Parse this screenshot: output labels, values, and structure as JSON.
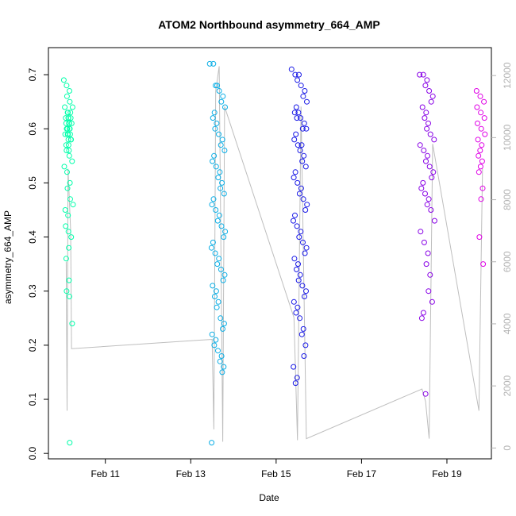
{
  "chart_data": {
    "type": "scatter",
    "title": "ATOM2 Northbound asymmetry_664_AMP",
    "xlabel": "Date",
    "ylabel": "asymmetry_664_AMP",
    "xlim": [
      "2024-02-09T16:00",
      "2024-02-20T01:00"
    ],
    "ylim": [
      -0.01,
      0.75
    ],
    "x_ticks": [
      {
        "value": "2024-02-11T00:00",
        "label": "Feb 11"
      },
      {
        "value": "2024-02-13T00:00",
        "label": "Feb 13"
      },
      {
        "value": "2024-02-15T00:00",
        "label": "Feb 15"
      },
      {
        "value": "2024-02-17T00:00",
        "label": "Feb 17"
      },
      {
        "value": "2024-02-19T00:00",
        "label": "Feb 19"
      }
    ],
    "y_ticks": [
      0.0,
      0.1,
      0.2,
      0.3,
      0.4,
      0.5,
      0.6,
      0.7
    ],
    "y_tick_labels": [
      "0.0",
      "0.1",
      "0.2",
      "0.3",
      "0.4",
      "0.5",
      "0.6",
      "0.7"
    ],
    "y2_ticks": [
      0,
      2000,
      4000,
      6000,
      8000,
      10000,
      12000
    ],
    "y2_tick_labels": [
      "0",
      "2000",
      "4000",
      "6000",
      "8000",
      "10000",
      "12000"
    ],
    "y2lim": [
      -350,
      12900
    ],
    "grid": false,
    "colors": {
      "cluster1": "#00ffaa",
      "cluster2": "#0aaee6",
      "cluster3": "#1a1ae6",
      "cluster4": "#8800e6",
      "cluster5": "#e000e6",
      "line": "#bebebe",
      "right_axis": "#b3b3b3"
    },
    "series": [
      {
        "color": "#00ffaa",
        "x": [
          "2024-02-10T02:00",
          "2024-02-10T02:30",
          "2024-02-10T03:00",
          "2024-02-10T03:30",
          "2024-02-10T04:00",
          "2024-02-10T04:30"
        ],
        "centers": [
          0.6,
          0.61,
          0.59,
          0.6,
          0.58,
          0.59
        ],
        "points": [
          0.69,
          0.68,
          0.67,
          0.66,
          0.65,
          0.64,
          0.64,
          0.63,
          0.63,
          0.63,
          0.62,
          0.62,
          0.62,
          0.62,
          0.61,
          0.61,
          0.61,
          0.61,
          0.6,
          0.6,
          0.6,
          0.6,
          0.6,
          0.59,
          0.59,
          0.59,
          0.59,
          0.58,
          0.58,
          0.58,
          0.57,
          0.57,
          0.56,
          0.56,
          0.55,
          0.54,
          0.53,
          0.52,
          0.5,
          0.49,
          0.47,
          0.46,
          0.45,
          0.44,
          0.42,
          0.41,
          0.4,
          0.38,
          0.36,
          0.32,
          0.3,
          0.29,
          0.24,
          0.02
        ]
      },
      {
        "color": "#0aaee6",
        "x": [
          "2024-02-13T12:00",
          "2024-02-13T13:00",
          "2024-02-13T14:00",
          "2024-02-13T15:00",
          "2024-02-13T16:00",
          "2024-02-13T17:00",
          "2024-02-13T18:00",
          "2024-02-13T19:00"
        ],
        "points": [
          0.72,
          0.72,
          0.68,
          0.68,
          0.67,
          0.66,
          0.65,
          0.64,
          0.63,
          0.62,
          0.61,
          0.6,
          0.59,
          0.58,
          0.57,
          0.56,
          0.55,
          0.54,
          0.53,
          0.52,
          0.51,
          0.5,
          0.49,
          0.48,
          0.47,
          0.46,
          0.45,
          0.44,
          0.43,
          0.42,
          0.41,
          0.4,
          0.39,
          0.38,
          0.37,
          0.36,
          0.35,
          0.34,
          0.33,
          0.32,
          0.31,
          0.3,
          0.29,
          0.28,
          0.27,
          0.25,
          0.24,
          0.23,
          0.22,
          0.21,
          0.2,
          0.19,
          0.18,
          0.17,
          0.16,
          0.15,
          0.02
        ]
      },
      {
        "color": "#1a1ae6",
        "x": [
          "2024-02-15T10:00",
          "2024-02-15T11:00",
          "2024-02-15T12:00",
          "2024-02-15T13:00",
          "2024-02-15T14:00",
          "2024-02-15T15:00",
          "2024-02-15T16:00",
          "2024-02-15T17:00"
        ],
        "points": [
          0.71,
          0.7,
          0.7,
          0.69,
          0.68,
          0.67,
          0.66,
          0.65,
          0.64,
          0.63,
          0.63,
          0.62,
          0.62,
          0.61,
          0.6,
          0.6,
          0.59,
          0.58,
          0.57,
          0.57,
          0.56,
          0.55,
          0.54,
          0.53,
          0.52,
          0.51,
          0.5,
          0.49,
          0.48,
          0.47,
          0.46,
          0.45,
          0.44,
          0.43,
          0.42,
          0.41,
          0.4,
          0.39,
          0.38,
          0.37,
          0.36,
          0.35,
          0.34,
          0.33,
          0.32,
          0.31,
          0.3,
          0.29,
          0.28,
          0.27,
          0.26,
          0.25,
          0.23,
          0.22,
          0.2,
          0.18,
          0.16,
          0.14,
          0.13
        ]
      },
      {
        "color": "#8800e6",
        "x": [
          "2024-02-18T10:00",
          "2024-02-18T11:00",
          "2024-02-18T12:00",
          "2024-02-18T13:00",
          "2024-02-18T14:00",
          "2024-02-18T15:00",
          "2024-02-18T16:00"
        ],
        "points": [
          0.7,
          0.7,
          0.69,
          0.68,
          0.67,
          0.66,
          0.65,
          0.64,
          0.63,
          0.62,
          0.61,
          0.6,
          0.59,
          0.58,
          0.57,
          0.56,
          0.55,
          0.54,
          0.53,
          0.52,
          0.51,
          0.5,
          0.49,
          0.48,
          0.47,
          0.46,
          0.45,
          0.43,
          0.41,
          0.39,
          0.37,
          0.35,
          0.33,
          0.3,
          0.28,
          0.26,
          0.25,
          0.11
        ]
      },
      {
        "color": "#e000e6",
        "x": [
          "2024-02-19T18:00",
          "2024-02-19T19:00",
          "2024-02-19T20:00"
        ],
        "points": [
          0.67,
          0.66,
          0.65,
          0.64,
          0.63,
          0.62,
          0.61,
          0.6,
          0.59,
          0.58,
          0.57,
          0.56,
          0.55,
          0.54,
          0.53,
          0.52,
          0.49,
          0.47,
          0.4,
          0.35
        ]
      }
    ],
    "line_series": {
      "axis": "right",
      "color": "#bebebe",
      "x": [
        "2024-02-10T02:00",
        "2024-02-10T02:30",
        "2024-02-10T03:00",
        "2024-02-10T04:30",
        "2024-02-10T05:00",
        "2024-02-13T12:00",
        "2024-02-13T13:00",
        "2024-02-13T14:00",
        "2024-02-13T16:00",
        "2024-02-13T18:00",
        "2024-02-13T19:00",
        "2024-02-15T10:00",
        "2024-02-15T12:00",
        "2024-02-15T14:00",
        "2024-02-15T17:00",
        "2024-02-18T10:00",
        "2024-02-18T12:00",
        "2024-02-18T14:00",
        "2024-02-18T16:00",
        "2024-02-19T18:00",
        "2024-02-19T20:00"
      ],
      "y": [
        6000,
        1200,
        9000,
        7000,
        3200,
        3500,
        600,
        11500,
        12300,
        200,
        11000,
        4200,
        250,
        11000,
        300,
        1900,
        1500,
        300,
        9800,
        1200,
        9000
      ]
    }
  }
}
